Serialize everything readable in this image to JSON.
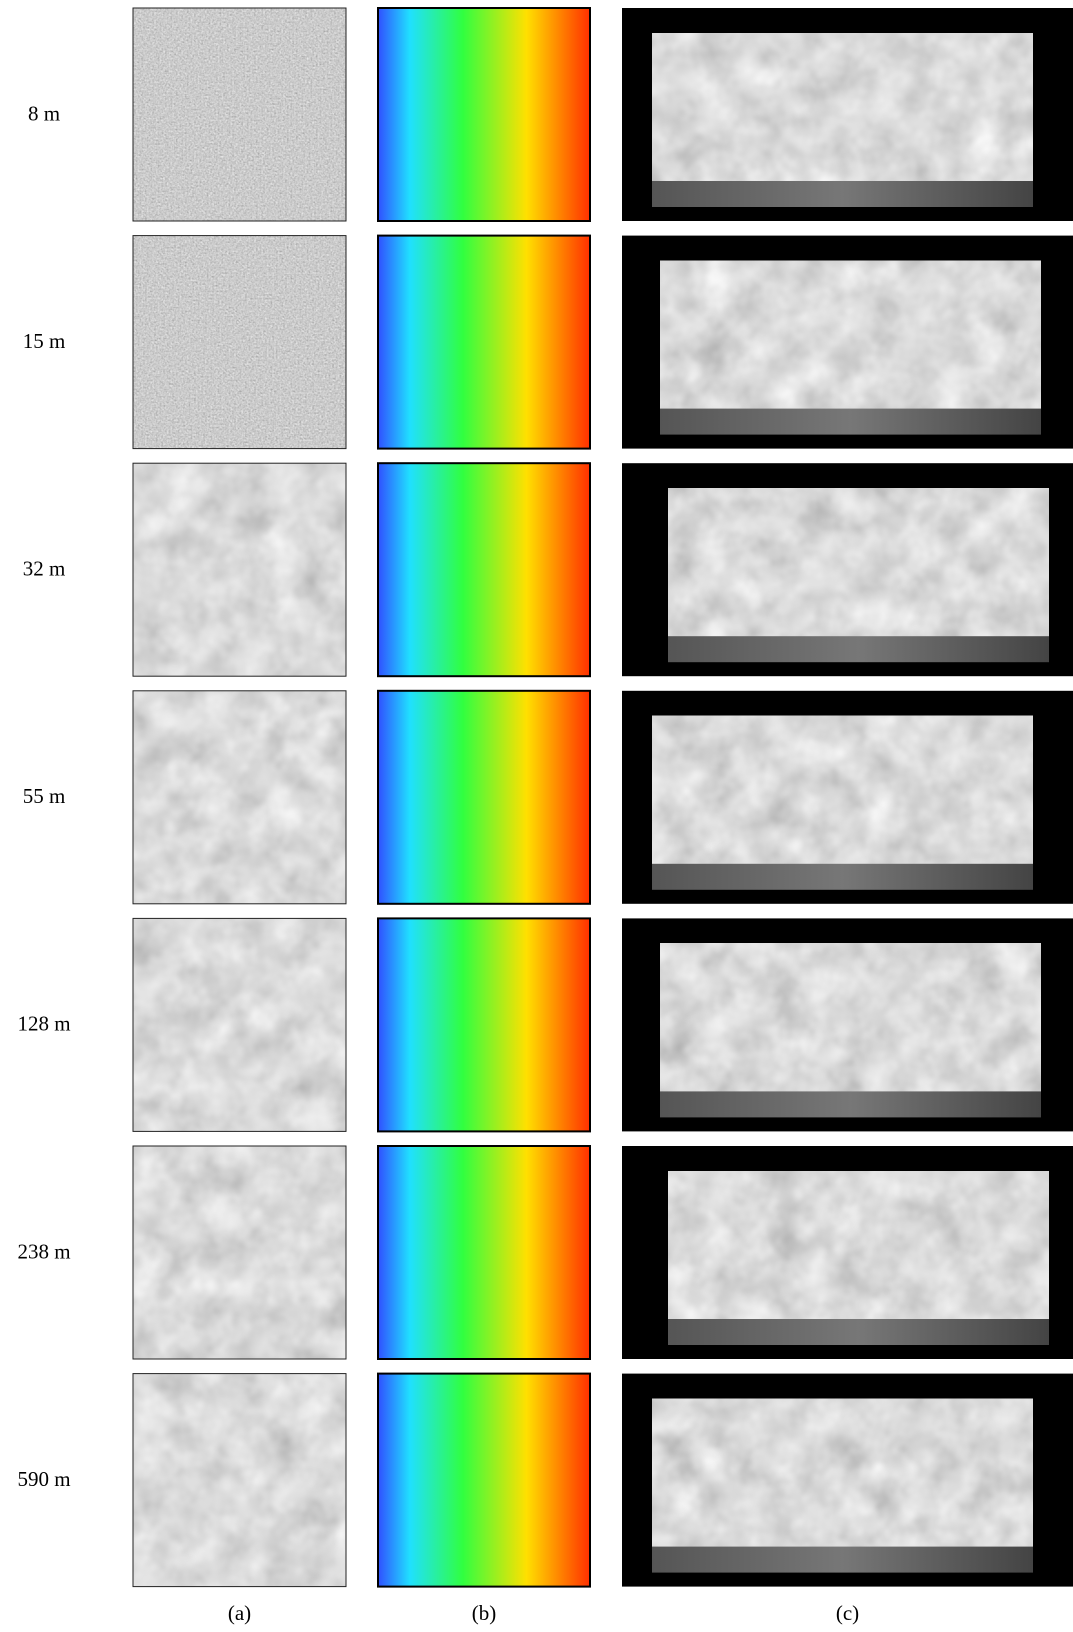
{
  "rows": [
    {
      "label": "8 m"
    },
    {
      "label": "15 m"
    },
    {
      "label": "32 m"
    },
    {
      "label": "55 m"
    },
    {
      "label": "128 m"
    },
    {
      "label": "238 m"
    },
    {
      "label": "590 m"
    }
  ],
  "captions": [
    "(a)",
    "(b)",
    "(c)"
  ]
}
